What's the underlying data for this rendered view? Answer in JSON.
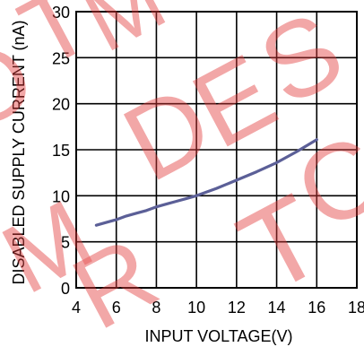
{
  "chart_data": {
    "type": "line",
    "xlabel": "INPUT VOLTAGE(V)",
    "ylabel": "DISABLED SUPPLY CURRENT (nA)",
    "xlim": [
      4,
      18
    ],
    "ylim": [
      0,
      30
    ],
    "x_ticks": [
      "4",
      "6",
      "8",
      "10",
      "12",
      "14",
      "16",
      "18"
    ],
    "y_ticks": [
      "0",
      "5",
      "10",
      "15",
      "20",
      "25",
      "30"
    ],
    "grid": true,
    "series": [
      {
        "color": "#5b5f97",
        "x": [
          5,
          5.5,
          6,
          6.5,
          7,
          7.5,
          8,
          8.5,
          9,
          9.5,
          10,
          11,
          12,
          13,
          14,
          15,
          16
        ],
        "y": [
          6.8,
          7.1,
          7.4,
          7.8,
          8.1,
          8.4,
          8.8,
          9.1,
          9.4,
          9.7,
          10.0,
          10.8,
          11.7,
          12.6,
          13.6,
          14.8,
          16.1
        ]
      }
    ]
  },
  "watermark": {
    "color": "#e23a3a",
    "text": "DO NOT USE FOR NEW DESIGN"
  }
}
